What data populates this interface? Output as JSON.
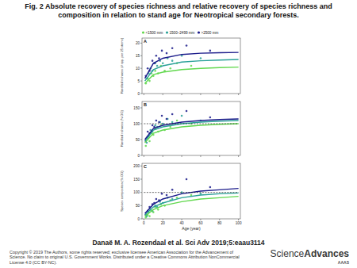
{
  "title": "Fig. 2 Absolute recovery of species richness and relative recovery of species richness and composition in relation to stand age for Neotropical secondary forests.",
  "citation": "Danaë M. A. Rozendaal et al. Sci Adv 2019;5:eaau3114",
  "copyright": "Copyright © 2019 The Authors, some rights reserved; exclusive licensee American Association for the Advancement of Science. No claim to original U.S. Government Works. Distributed under a Creative Commons Attribution NonCommercial License 4.0 (CC BY-NC).",
  "logo": {
    "word1": "Science",
    "word2": "Advances",
    "org": "AAAS"
  },
  "chart_data": [
    {
      "type": "scatter",
      "title": "A",
      "y_label": "Rarefied richness (# spp. per 25 stems)",
      "xlim": [
        -2,
        102
      ],
      "xticks": [
        0,
        20,
        40,
        60,
        80,
        100
      ],
      "ylim": [
        0,
        22
      ],
      "yticks": [
        0,
        5,
        10,
        15,
        20
      ],
      "grid": false,
      "legend": "top",
      "tick_labels": "y",
      "series": [
        {
          "name": "<1500 mm",
          "type": "scatter",
          "marker": "circle",
          "color": "#62d84e",
          "x": [
            2,
            4,
            6,
            8,
            10,
            12,
            15,
            18,
            22,
            28,
            35,
            50
          ],
          "values": [
            4,
            6,
            5,
            8,
            7,
            9,
            8,
            11,
            9,
            10,
            12,
            11
          ]
        },
        {
          "name": "1500–2499 mm",
          "type": "scatter",
          "marker": "circle",
          "color": "#2aa198",
          "x": [
            3,
            5,
            7,
            9,
            12,
            14,
            17,
            20,
            25,
            30,
            40,
            60
          ],
          "values": [
            6,
            8,
            10,
            9,
            12,
            11,
            13,
            12,
            14,
            13,
            15,
            14
          ]
        },
        {
          "name": ">2500 mm",
          "type": "scatter",
          "marker": "circle",
          "color": "#1a1a8a",
          "x": [
            2,
            4,
            6,
            9,
            11,
            13,
            16,
            19,
            24,
            30,
            45,
            70
          ],
          "values": [
            7,
            10,
            9,
            13,
            12,
            15,
            14,
            17,
            16,
            18,
            19,
            17
          ]
        },
        {
          "type": "line",
          "line_style": "solid",
          "color": "#62d84e",
          "x": [
            1,
            10,
            20,
            40,
            60,
            80,
            100
          ],
          "values": [
            4,
            7.5,
            8.5,
            9.5,
            10,
            10.3,
            10.5
          ]
        },
        {
          "type": "line",
          "line_style": "solid",
          "color": "#2aa198",
          "x": [
            1,
            10,
            20,
            40,
            60,
            80,
            100
          ],
          "values": [
            5,
            9.5,
            11,
            12.5,
            13,
            13.3,
            13.5
          ]
        },
        {
          "type": "line",
          "line_style": "solid",
          "color": "#1a1a8a",
          "x": [
            1,
            10,
            20,
            40,
            60,
            80,
            100
          ],
          "values": [
            6,
            12,
            14,
            15.5,
            16,
            16.2,
            16.3
          ]
        }
      ]
    },
    {
      "type": "scatter",
      "title": "B",
      "y_label": "Rarefied richness (% OG)",
      "xlim": [
        -2,
        102
      ],
      "xticks": [
        0,
        20,
        40,
        60,
        80,
        100
      ],
      "ylim": [
        0,
        170
      ],
      "yticks": [
        0,
        50,
        100,
        150
      ],
      "grid": false,
      "tick_labels": "y",
      "series": [
        {
          "type": "scatter",
          "marker": "circle",
          "color": "#62d84e",
          "x": [
            2,
            4,
            6,
            8,
            10,
            12,
            15,
            18,
            22,
            28,
            35,
            50
          ],
          "values": [
            30,
            55,
            45,
            70,
            65,
            85,
            75,
            95,
            80,
            90,
            110,
            100
          ]
        },
        {
          "type": "scatter",
          "marker": "circle",
          "color": "#2aa198",
          "x": [
            3,
            5,
            7,
            9,
            12,
            14,
            17,
            20,
            25,
            30,
            40,
            60
          ],
          "values": [
            40,
            60,
            80,
            75,
            95,
            90,
            105,
            100,
            115,
            105,
            125,
            110
          ]
        },
        {
          "type": "scatter",
          "marker": "circle",
          "color": "#1a1a8a",
          "x": [
            2,
            4,
            6,
            9,
            11,
            13,
            16,
            19,
            24,
            30,
            45,
            70
          ],
          "values": [
            45,
            75,
            70,
            95,
            90,
            110,
            105,
            125,
            115,
            130,
            140,
            120
          ]
        },
        {
          "type": "line",
          "line_style": "solid",
          "color": "#62d84e",
          "x": [
            1,
            10,
            20,
            40,
            60,
            80,
            100
          ],
          "values": [
            40,
            70,
            80,
            90,
            95,
            98,
            100
          ]
        },
        {
          "type": "line",
          "line_style": "solid",
          "color": "#2aa198",
          "x": [
            1,
            10,
            20,
            40,
            60,
            80,
            100
          ],
          "values": [
            45,
            80,
            90,
            100,
            105,
            108,
            110
          ]
        },
        {
          "type": "line",
          "line_style": "solid",
          "color": "#1a1a8a",
          "x": [
            1,
            10,
            20,
            40,
            60,
            80,
            100
          ],
          "values": [
            50,
            85,
            95,
            105,
            110,
            113,
            115
          ]
        },
        {
          "type": "line",
          "line_style": "dashed",
          "color": "#000000",
          "x": [
            0,
            100
          ],
          "values": [
            100,
            100
          ]
        }
      ]
    },
    {
      "type": "scatter",
      "title": "C",
      "y_label": "Species composition (% OG)",
      "x_label": "Age (year)",
      "xlim": [
        -2,
        102
      ],
      "xticks": [
        0,
        20,
        40,
        60,
        80,
        100
      ],
      "ylim": [
        0,
        210
      ],
      "yticks": [
        0,
        50,
        100,
        150,
        200
      ],
      "grid": false,
      "series": [
        {
          "type": "scatter",
          "marker": "circle",
          "color": "#62d84e",
          "x": [
            2,
            4,
            6,
            8,
            10,
            12,
            15,
            18,
            22,
            28,
            35,
            50
          ],
          "values": [
            5,
            15,
            10,
            30,
            25,
            45,
            35,
            55,
            50,
            70,
            80,
            90
          ]
        },
        {
          "type": "scatter",
          "marker": "circle",
          "color": "#2aa198",
          "x": [
            3,
            5,
            7,
            9,
            12,
            14,
            17,
            20,
            25,
            30,
            40,
            60
          ],
          "values": [
            10,
            25,
            35,
            30,
            50,
            45,
            65,
            60,
            80,
            75,
            100,
            95
          ]
        },
        {
          "type": "scatter",
          "marker": "circle",
          "color": "#1a1a8a",
          "x": [
            2,
            4,
            6,
            9,
            11,
            13,
            16,
            19,
            24,
            30,
            45,
            70
          ],
          "values": [
            15,
            30,
            45,
            55,
            60,
            75,
            70,
            95,
            90,
            110,
            150,
            120
          ]
        },
        {
          "type": "line",
          "line_style": "solid",
          "color": "#62d84e",
          "x": [
            1,
            10,
            20,
            40,
            60,
            80,
            100
          ],
          "values": [
            10,
            35,
            50,
            65,
            75,
            80,
            85
          ]
        },
        {
          "type": "line",
          "line_style": "solid",
          "color": "#2aa198",
          "x": [
            1,
            10,
            20,
            40,
            60,
            80,
            100
          ],
          "values": [
            15,
            45,
            60,
            80,
            90,
            95,
            98
          ]
        },
        {
          "type": "line",
          "line_style": "solid",
          "color": "#1a1a8a",
          "x": [
            1,
            10,
            20,
            40,
            60,
            80,
            100
          ],
          "values": [
            20,
            55,
            75,
            95,
            105,
            110,
            115
          ]
        },
        {
          "type": "line",
          "line_style": "dashed",
          "color": "#000000",
          "x": [
            0,
            100
          ],
          "values": [
            100,
            100
          ]
        }
      ]
    }
  ]
}
